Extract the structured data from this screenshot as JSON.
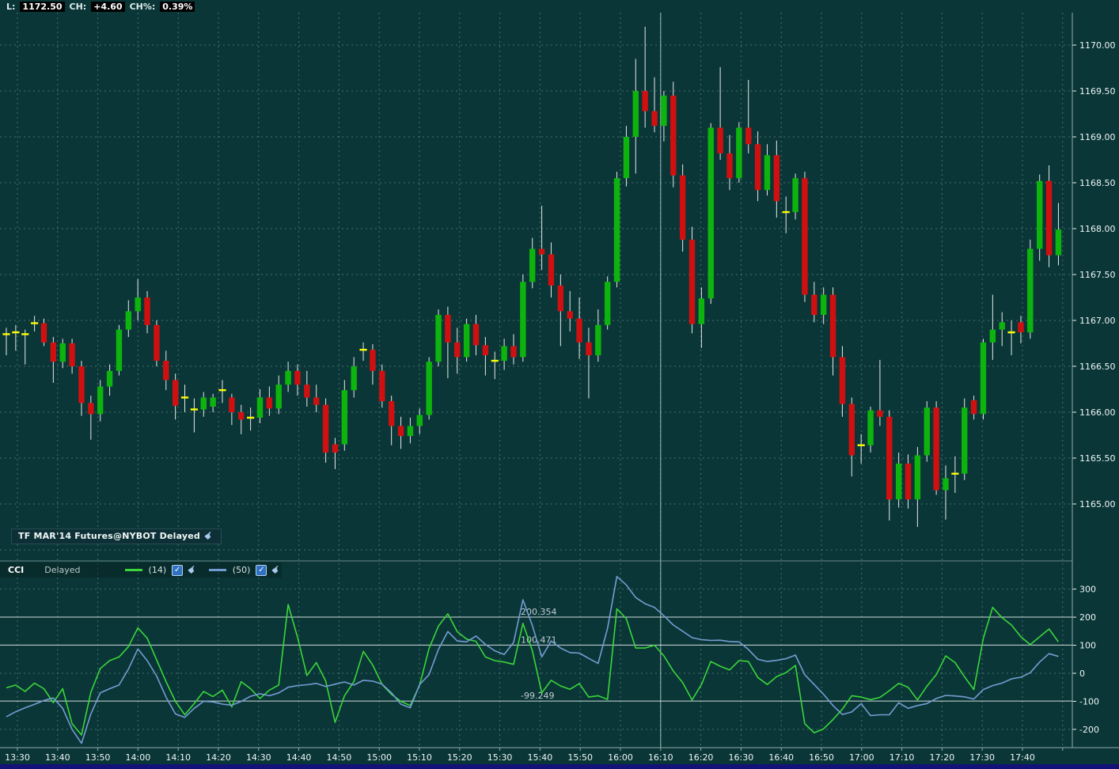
{
  "quote_bar": {
    "items": [
      {
        "label": "L:",
        "value": "1172.50"
      },
      {
        "label": "CH:",
        "value": "+4.60"
      },
      {
        "label": "CH%:",
        "value": "0.39%"
      }
    ]
  },
  "instrument": {
    "label": "TF MAR'14 Futures@NYBOT Delayed"
  },
  "cci_panel": {
    "title": "CCI",
    "status": "Delayed",
    "series_legend": [
      {
        "label": "(14)",
        "checked": true,
        "color": "#3ad63a"
      },
      {
        "label": "(50)",
        "checked": true,
        "color": "#739dd2"
      }
    ]
  },
  "colors": {
    "background": "#0a3637",
    "grid": "#5f8181",
    "axis_text": "#eef5f5",
    "candle_up": "#0db40d",
    "candle_down": "#d01010",
    "doji": "#ffff00",
    "wick": "#e9e9e9",
    "cci_fast": "#3ad63a",
    "cci_slow": "#739dd2",
    "level_line": "#e8eef0",
    "level_text": "#c3ccd4",
    "session_divider": "#c2d2d2",
    "panel_border": "#93a9a9"
  },
  "chart_data": [
    {
      "type": "candlestick",
      "title": "TF MAR'14 Futures@NYBOT Delayed",
      "ylabel": "price",
      "ylim": [
        1164.45,
        1170.35
      ],
      "y_ticks": [
        1170.0,
        1169.5,
        1169.0,
        1168.5,
        1168.0,
        1167.5,
        1167.0,
        1166.5,
        1166.0,
        1165.5,
        1165.0
      ],
      "x_labels": [
        "13:30",
        "13:40",
        "13:50",
        "14:00",
        "14:10",
        "14:20",
        "14:30",
        "14:40",
        "14:50",
        "15:00",
        "15:10",
        "15:20",
        "15:30",
        "15:40",
        "15:50",
        "16:00",
        "16:10",
        "16:20",
        "16:30",
        "16:40",
        "16:50",
        "17:00",
        "17:10",
        "17:20",
        "17:30",
        "17:40"
      ],
      "session_divider_label_index": 16,
      "grid": true,
      "candles_ohlc": [
        [
          1166.85,
          1166.92,
          1166.62,
          1166.85
        ],
        [
          1166.87,
          1166.95,
          1166.67,
          1166.87
        ],
        [
          1166.85,
          1166.9,
          1166.52,
          1166.85
        ],
        [
          1166.97,
          1167.05,
          1166.88,
          1166.97
        ],
        [
          1166.97,
          1167.02,
          1166.72,
          1166.76
        ],
        [
          1166.76,
          1166.82,
          1166.32,
          1166.55
        ],
        [
          1166.55,
          1166.8,
          1166.48,
          1166.75
        ],
        [
          1166.75,
          1166.8,
          1166.42,
          1166.5
        ],
        [
          1166.5,
          1166.56,
          1165.96,
          1166.1
        ],
        [
          1166.1,
          1166.18,
          1165.7,
          1165.98
        ],
        [
          1165.98,
          1166.35,
          1165.9,
          1166.28
        ],
        [
          1166.28,
          1166.52,
          1166.18,
          1166.45
        ],
        [
          1166.45,
          1166.95,
          1166.4,
          1166.9
        ],
        [
          1166.9,
          1167.22,
          1166.82,
          1167.1
        ],
        [
          1167.1,
          1167.45,
          1167.0,
          1167.25
        ],
        [
          1167.25,
          1167.32,
          1166.86,
          1166.95
        ],
        [
          1166.95,
          1167.0,
          1166.5,
          1166.56
        ],
        [
          1166.56,
          1166.67,
          1166.24,
          1166.35
        ],
        [
          1166.35,
          1166.42,
          1165.92,
          1166.07
        ],
        [
          1166.16,
          1166.3,
          1166.0,
          1166.16
        ],
        [
          1166.03,
          1166.15,
          1165.78,
          1166.03
        ],
        [
          1166.03,
          1166.22,
          1165.95,
          1166.16
        ],
        [
          1166.06,
          1166.2,
          1166.0,
          1166.16
        ],
        [
          1166.24,
          1166.35,
          1166.1,
          1166.24
        ],
        [
          1166.16,
          1166.2,
          1165.86,
          1166.0
        ],
        [
          1166.0,
          1166.08,
          1165.76,
          1165.92
        ],
        [
          1165.94,
          1166.05,
          1165.8,
          1165.94
        ],
        [
          1165.94,
          1166.25,
          1165.88,
          1166.16
        ],
        [
          1166.16,
          1166.28,
          1165.96,
          1166.04
        ],
        [
          1166.04,
          1166.4,
          1165.98,
          1166.3
        ],
        [
          1166.3,
          1166.55,
          1166.22,
          1166.45
        ],
        [
          1166.45,
          1166.52,
          1166.18,
          1166.3
        ],
        [
          1166.3,
          1166.45,
          1166.06,
          1166.16
        ],
        [
          1166.16,
          1166.3,
          1166.0,
          1166.08
        ],
        [
          1166.08,
          1166.15,
          1165.45,
          1165.56
        ],
        [
          1165.65,
          1165.72,
          1165.38,
          1165.56
        ],
        [
          1165.65,
          1166.35,
          1165.58,
          1166.24
        ],
        [
          1166.24,
          1166.6,
          1166.16,
          1166.5
        ],
        [
          1166.68,
          1166.76,
          1166.56,
          1166.68
        ],
        [
          1166.68,
          1166.74,
          1166.3,
          1166.45
        ],
        [
          1166.45,
          1166.52,
          1166.05,
          1166.12
        ],
        [
          1166.12,
          1166.18,
          1165.64,
          1165.85
        ],
        [
          1165.85,
          1165.95,
          1165.6,
          1165.74
        ],
        [
          1165.74,
          1165.94,
          1165.66,
          1165.85
        ],
        [
          1165.85,
          1166.04,
          1165.76,
          1165.97
        ],
        [
          1165.97,
          1166.6,
          1165.92,
          1166.55
        ],
        [
          1166.55,
          1167.12,
          1166.5,
          1167.06
        ],
        [
          1167.06,
          1167.15,
          1166.37,
          1166.76
        ],
        [
          1166.76,
          1166.92,
          1166.42,
          1166.6
        ],
        [
          1166.6,
          1167.02,
          1166.55,
          1166.96
        ],
        [
          1166.96,
          1167.06,
          1166.62,
          1166.73
        ],
        [
          1166.73,
          1166.82,
          1166.4,
          1166.62
        ],
        [
          1166.56,
          1166.66,
          1166.36,
          1166.56
        ],
        [
          1166.56,
          1166.8,
          1166.46,
          1166.72
        ],
        [
          1166.72,
          1166.85,
          1166.52,
          1166.6
        ],
        [
          1166.6,
          1167.5,
          1166.55,
          1167.42
        ],
        [
          1167.42,
          1167.9,
          1167.35,
          1167.78
        ],
        [
          1167.78,
          1168.25,
          1167.55,
          1167.72
        ],
        [
          1167.72,
          1167.85,
          1167.25,
          1167.38
        ],
        [
          1167.38,
          1167.5,
          1166.72,
          1167.1
        ],
        [
          1167.1,
          1167.32,
          1166.88,
          1167.02
        ],
        [
          1167.02,
          1167.25,
          1166.58,
          1166.76
        ],
        [
          1166.76,
          1166.92,
          1166.15,
          1166.62
        ],
        [
          1166.62,
          1167.12,
          1166.55,
          1166.95
        ],
        [
          1166.95,
          1167.48,
          1166.9,
          1167.42
        ],
        [
          1167.42,
          1168.62,
          1167.36,
          1168.55
        ],
        [
          1168.55,
          1169.12,
          1168.46,
          1169.0
        ],
        [
          1169.0,
          1169.85,
          1168.6,
          1169.5
        ],
        [
          1169.5,
          1170.2,
          1169.1,
          1169.28
        ],
        [
          1169.28,
          1169.65,
          1169.05,
          1169.12
        ],
        [
          1169.12,
          1169.5,
          1168.95,
          1169.45
        ],
        [
          1169.45,
          1169.6,
          1168.45,
          1168.58
        ],
        [
          1168.58,
          1168.7,
          1167.75,
          1167.88
        ],
        [
          1167.88,
          1168.02,
          1166.86,
          1166.96
        ],
        [
          1166.96,
          1167.36,
          1166.7,
          1167.24
        ],
        [
          1167.24,
          1169.15,
          1167.18,
          1169.1
        ],
        [
          1169.1,
          1169.76,
          1168.75,
          1168.82
        ],
        [
          1168.82,
          1169.02,
          1168.42,
          1168.55
        ],
        [
          1168.55,
          1169.16,
          1168.5,
          1169.1
        ],
        [
          1169.1,
          1169.62,
          1168.82,
          1168.92
        ],
        [
          1168.92,
          1169.06,
          1168.3,
          1168.42
        ],
        [
          1168.42,
          1168.92,
          1168.36,
          1168.8
        ],
        [
          1168.8,
          1168.96,
          1168.12,
          1168.3
        ],
        [
          1168.18,
          1168.35,
          1167.95,
          1168.18
        ],
        [
          1168.18,
          1168.6,
          1168.1,
          1168.55
        ],
        [
          1168.55,
          1168.62,
          1167.2,
          1167.28
        ],
        [
          1167.28,
          1167.42,
          1166.98,
          1167.06
        ],
        [
          1167.06,
          1167.36,
          1166.96,
          1167.28
        ],
        [
          1167.28,
          1167.36,
          1166.4,
          1166.6
        ],
        [
          1166.6,
          1166.72,
          1165.95,
          1166.09
        ],
        [
          1166.09,
          1166.16,
          1165.3,
          1165.53
        ],
        [
          1165.64,
          1165.76,
          1165.44,
          1165.64
        ],
        [
          1165.64,
          1166.06,
          1165.56,
          1166.02
        ],
        [
          1166.02,
          1166.57,
          1165.85,
          1165.95
        ],
        [
          1165.95,
          1166.02,
          1164.82,
          1165.05
        ],
        [
          1165.05,
          1165.56,
          1164.96,
          1165.44
        ],
        [
          1165.44,
          1165.54,
          1164.95,
          1165.05
        ],
        [
          1165.05,
          1165.62,
          1164.75,
          1165.53
        ],
        [
          1165.53,
          1166.12,
          1165.46,
          1166.05
        ],
        [
          1166.05,
          1166.12,
          1165.1,
          1165.15
        ],
        [
          1165.15,
          1165.42,
          1164.83,
          1165.28
        ],
        [
          1165.33,
          1165.52,
          1165.12,
          1165.33
        ],
        [
          1165.33,
          1166.15,
          1165.26,
          1166.05
        ],
        [
          1166.13,
          1166.18,
          1165.92,
          1165.98
        ],
        [
          1165.98,
          1166.8,
          1165.92,
          1166.76
        ],
        [
          1166.76,
          1167.28,
          1166.57,
          1166.9
        ],
        [
          1166.9,
          1167.09,
          1166.72,
          1166.98
        ],
        [
          1166.87,
          1167.0,
          1166.62,
          1166.87
        ],
        [
          1166.98,
          1167.05,
          1166.75,
          1166.87
        ],
        [
          1166.87,
          1167.88,
          1166.8,
          1167.78
        ],
        [
          1167.78,
          1168.59,
          1167.65,
          1168.52
        ],
        [
          1168.52,
          1168.69,
          1167.58,
          1167.71
        ],
        [
          1167.71,
          1168.28,
          1167.6,
          1167.99
        ]
      ]
    },
    {
      "type": "line",
      "title": "CCI",
      "ylim": [
        -280,
        380
      ],
      "y_ticks": [
        300,
        200,
        100,
        0,
        -100,
        -200
      ],
      "levels": [
        {
          "value": 200.354,
          "label": "200.354"
        },
        {
          "value": 100.471,
          "label": "100.471"
        },
        {
          "value": -99.249,
          "label": "-99.249"
        }
      ],
      "dashed_levels": [
        300,
        0,
        -200
      ],
      "series": [
        {
          "name": "CCI (14)",
          "color": "#3ad63a",
          "values": [
            -52,
            -42,
            -65,
            -35,
            -55,
            -105,
            -55,
            -180,
            -220,
            -68,
            17,
            45,
            58,
            95,
            162,
            125,
            48,
            -30,
            -100,
            -148,
            -108,
            -65,
            -83,
            -60,
            -120,
            -30,
            -55,
            -90,
            -60,
            -42,
            245,
            128,
            -8,
            38,
            -28,
            -175,
            -80,
            -30,
            78,
            30,
            -40,
            -75,
            -100,
            -115,
            -42,
            88,
            168,
            212,
            148,
            122,
            114,
            58,
            45,
            40,
            32,
            178,
            80,
            -70,
            -25,
            -45,
            -57,
            -37,
            -85,
            -80,
            -93,
            230,
            195,
            90,
            90,
            100,
            62,
            8,
            -33,
            -95,
            -40,
            42,
            25,
            12,
            45,
            42,
            -15,
            -40,
            -12,
            2,
            28,
            -180,
            -212,
            -198,
            -165,
            -128,
            -80,
            -85,
            -94,
            -86,
            -62,
            -36,
            -50,
            -95,
            -46,
            -5,
            62,
            38,
            -12,
            -58,
            124,
            235,
            198,
            172,
            130,
            102,
            130,
            158,
            112
          ]
        },
        {
          "name": "CCI (50)",
          "color": "#739dd2",
          "values": [
            -155,
            -137,
            -123,
            -111,
            -97,
            -88,
            -125,
            -200,
            -250,
            -145,
            -70,
            -55,
            -42,
            15,
            87,
            45,
            -10,
            -85,
            -145,
            -157,
            -125,
            -100,
            -102,
            -110,
            -114,
            -100,
            -82,
            -73,
            -80,
            -70,
            -50,
            -44,
            -41,
            -36,
            -47,
            -39,
            -31,
            -42,
            -25,
            -28,
            -39,
            -70,
            -110,
            -123,
            -40,
            -5,
            85,
            149,
            115,
            112,
            133,
            103,
            80,
            67,
            110,
            262,
            170,
            58,
            115,
            90,
            74,
            72,
            53,
            35,
            160,
            345,
            315,
            270,
            248,
            235,
            205,
            172,
            150,
            127,
            120,
            117,
            118,
            113,
            112,
            85,
            50,
            42,
            46,
            52,
            65,
            -5,
            -40,
            -75,
            -115,
            -147,
            -138,
            -108,
            -151,
            -148,
            -148,
            -105,
            -125,
            -115,
            -108,
            -90,
            -79,
            -81,
            -84,
            -92,
            -58,
            -44,
            -35,
            -20,
            -14,
            2,
            40,
            70,
            60
          ]
        }
      ]
    }
  ]
}
